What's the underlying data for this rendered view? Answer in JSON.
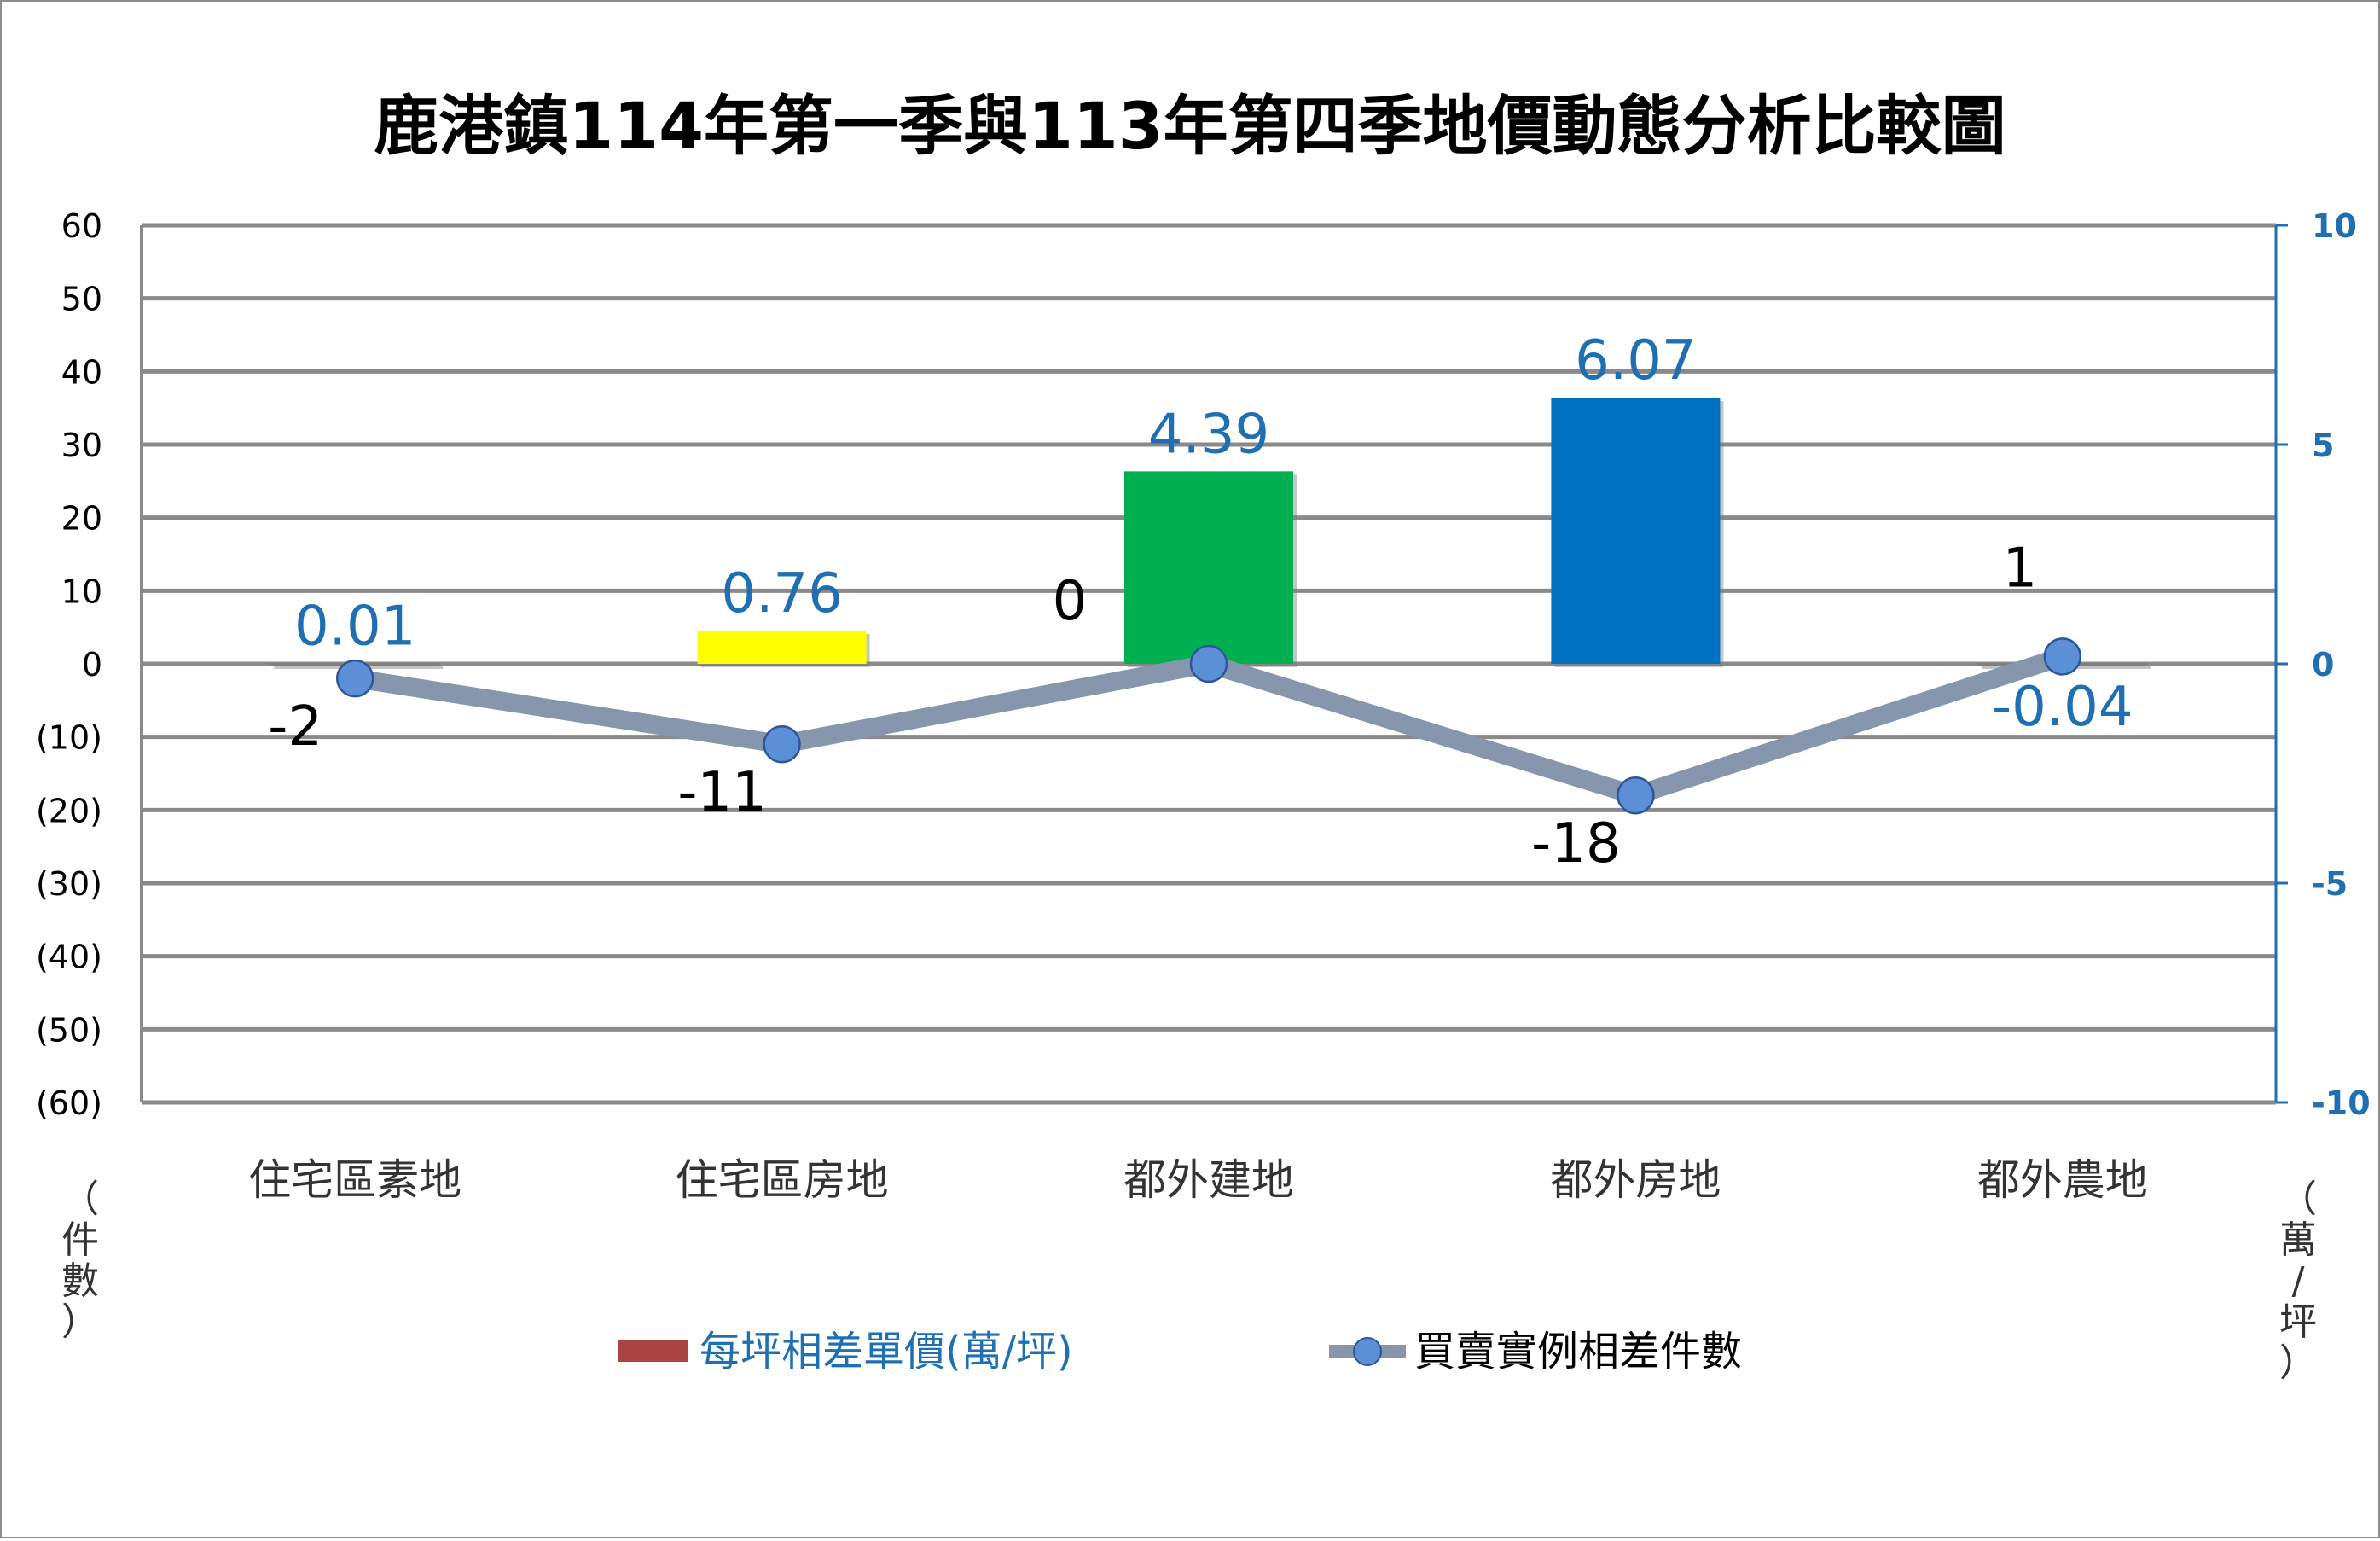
{
  "chart_data": {
    "type": "bar",
    "title": "鹿港鎮114年第一季與113年第四季地價動態分析比較圖",
    "categories": [
      "住宅區素地",
      "住宅區房地",
      "都外建地",
      "都外房地",
      "都外農地"
    ],
    "left_axis": {
      "unit_label": "（件數）",
      "ylim": [
        -60,
        60
      ],
      "ticks": [
        60,
        50,
        40,
        30,
        20,
        10,
        0,
        -10,
        -20,
        -30,
        -40,
        -50,
        -60
      ],
      "tick_labels": [
        "60",
        "50",
        "40",
        "30",
        "20",
        "10",
        "0",
        "(10)",
        "(20)",
        "(30)",
        "(40)",
        "(50)",
        "(60)"
      ]
    },
    "right_axis": {
      "unit_label": "（萬/坪）",
      "ylim": [
        -10,
        10
      ],
      "ticks": [
        10,
        5,
        0,
        -5,
        -10
      ],
      "tick_labels": [
        "10",
        "5",
        "0",
        "-5",
        "-10"
      ]
    },
    "series": [
      {
        "name": "每坪相差單價(萬/坪)",
        "kind": "bar",
        "axis": "right",
        "values": [
          0.01,
          0.76,
          4.39,
          6.07,
          -0.04
        ],
        "labels": [
          "0.01",
          "0.76",
          "4.39",
          "6.07",
          "-0.04"
        ],
        "bar_colors": [
          "#808080",
          "#ffff00",
          "#00b050",
          "#0070c0",
          "#808080"
        ],
        "legend_color": "#a94442"
      },
      {
        "name": "買賣實例相差件數",
        "kind": "line",
        "axis": "left",
        "values": [
          -2,
          -11,
          0,
          -18,
          1
        ],
        "labels": [
          "-2",
          "-11",
          "0",
          "-18",
          "1"
        ],
        "line_color": "#8596ad",
        "marker_color": "#5b8fd6"
      }
    ],
    "grid": true,
    "legend": "bottom"
  }
}
